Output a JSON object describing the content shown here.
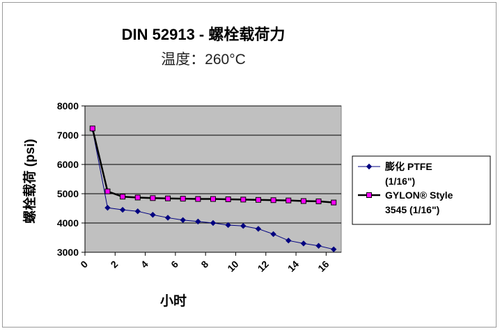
{
  "chart_data": {
    "type": "line",
    "title": "DIN 52913 - 螺栓载荷力",
    "subtitle": "温度：260°C",
    "xlabel": "小时",
    "ylabel": "螺栓载荷 (psi)",
    "xlim": [
      0,
      17
    ],
    "ylim": [
      3000,
      8000
    ],
    "xticks": [
      "0",
      "2",
      "4",
      "6",
      "8",
      "10",
      "12",
      "14",
      "16"
    ],
    "yticks": [
      "3000",
      "4000",
      "5000",
      "6000",
      "7000",
      "8000"
    ],
    "grid": "horizontal",
    "legend_position": "right",
    "plot_background": "#c0c0c0",
    "series": [
      {
        "name": "膨化 PTFE (1/16\")",
        "legend_lines": [
          "膨化 PTFE",
          "(1/16\")"
        ],
        "color": "#000080",
        "line_color": "#000080",
        "marker": "diamond",
        "x": [
          0.5,
          1.5,
          2.5,
          3.5,
          4.5,
          5.5,
          6.5,
          7.5,
          8.5,
          9.5,
          10.5,
          11.5,
          12.5,
          13.5,
          14.5,
          15.5,
          16.5
        ],
        "y": [
          7200,
          4520,
          4450,
          4400,
          4280,
          4180,
          4100,
          4050,
          4000,
          3930,
          3900,
          3800,
          3620,
          3400,
          3300,
          3220,
          3100
        ]
      },
      {
        "name": "GYLON® Style 3545 (1/16\")",
        "legend_lines": [
          "GYLON® Style",
          "3545 (1/16\")"
        ],
        "color": "#ff00ff",
        "line_color": "#000000",
        "marker": "square",
        "x": [
          0.5,
          1.5,
          2.5,
          3.5,
          4.5,
          5.5,
          6.5,
          7.5,
          8.5,
          9.5,
          10.5,
          11.5,
          12.5,
          13.5,
          14.5,
          15.5,
          16.5
        ],
        "y": [
          7230,
          5080,
          4900,
          4870,
          4850,
          4840,
          4830,
          4820,
          4820,
          4810,
          4800,
          4790,
          4780,
          4770,
          4750,
          4740,
          4700
        ]
      }
    ]
  }
}
